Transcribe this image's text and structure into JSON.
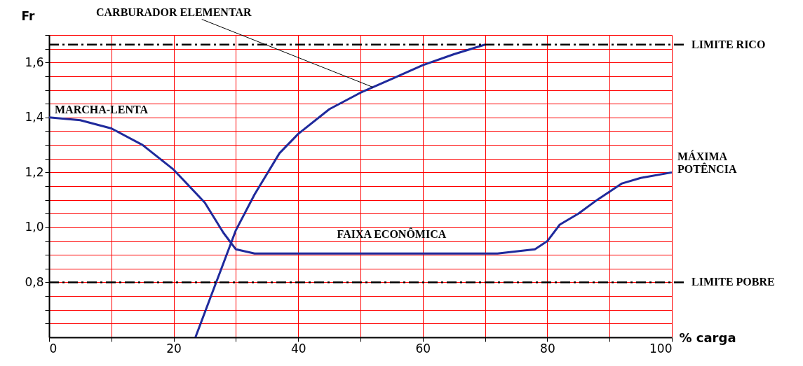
{
  "chart_data": {
    "type": "line",
    "xlabel": "% carga",
    "ylabel": "Fr",
    "xlim": [
      0,
      100
    ],
    "ylim": [
      0.6,
      1.7
    ],
    "xticks": [
      0,
      {
        "value": 10,
        "label": null
      },
      20,
      {
        "value": 30,
        "label": null
      },
      40,
      {
        "value": 50,
        "label": null
      },
      60,
      {
        "value": 70,
        "label": null
      },
      80,
      {
        "value": 90,
        "label": null
      },
      100
    ],
    "yticks": [
      {
        "value": 0.65,
        "label": null
      },
      {
        "value": 0.7,
        "label": null
      },
      {
        "value": 0.75,
        "label": null
      },
      {
        "value": 0.8,
        "label": "0,8"
      },
      {
        "value": 0.85,
        "label": null
      },
      {
        "value": 0.9,
        "label": null
      },
      {
        "value": 0.95,
        "label": null
      },
      {
        "value": 1.0,
        "label": "1,0"
      },
      {
        "value": 1.05,
        "label": null
      },
      {
        "value": 1.1,
        "label": null
      },
      {
        "value": 1.15,
        "label": null
      },
      {
        "value": 1.2,
        "label": "1,2"
      },
      {
        "value": 1.25,
        "label": null
      },
      {
        "value": 1.3,
        "label": null
      },
      {
        "value": 1.35,
        "label": null
      },
      {
        "value": 1.4,
        "label": "1,4"
      },
      {
        "value": 1.45,
        "label": null
      },
      {
        "value": 1.5,
        "label": null
      },
      {
        "value": 1.55,
        "label": null
      },
      {
        "value": 1.6,
        "label": "1,6"
      },
      {
        "value": 1.65,
        "label": null
      },
      {
        "value": 1.7,
        "label": null
      }
    ],
    "grid": true,
    "marker": "none",
    "line_style": "solid",
    "legend": false,
    "series": [
      {
        "color": "#1f2a9c",
        "x": [
          0,
          5,
          10,
          15,
          20,
          25,
          28,
          30,
          33,
          40,
          60,
          72,
          78,
          80,
          82,
          85,
          88,
          92,
          95,
          100
        ],
        "values": [
          1.4,
          1.39,
          1.36,
          1.3,
          1.21,
          1.09,
          0.98,
          0.92,
          0.905,
          0.905,
          0.905,
          0.905,
          0.92,
          0.95,
          1.01,
          1.05,
          1.1,
          1.16,
          1.18,
          1.2
        ]
      },
      {
        "color": "#1f2a9c",
        "x": [
          23.5,
          26,
          28,
          30,
          33,
          37,
          40,
          45,
          50,
          55,
          60,
          65,
          70
        ],
        "values": [
          0.6,
          0.75,
          0.87,
          0.99,
          1.12,
          1.27,
          1.34,
          1.43,
          1.49,
          1.54,
          1.59,
          1.63,
          1.665
        ]
      }
    ],
    "ref_lines": [
      {
        "axis": "y",
        "value": 1.665,
        "label": "LIMITE RICO",
        "color": "#000000",
        "line_style": "dashed"
      },
      {
        "axis": "y",
        "value": 0.8,
        "label": "LIMITE POBRE",
        "color": "#000000",
        "line_style": "dashed"
      }
    ],
    "annotations": [
      {
        "text": "MARCHA-LENTA",
        "x": 0,
        "y": 1.4
      },
      {
        "text": "CARBURADOR ELEMENTAR",
        "x": 52,
        "y": 1.51
      },
      {
        "text": "FAIXA ECONÔMICA",
        "x": 55,
        "y": 0.905
      },
      {
        "text": "MÁXIMA\nPOTÊNCIA",
        "x": 100,
        "y": 1.2
      }
    ]
  }
}
